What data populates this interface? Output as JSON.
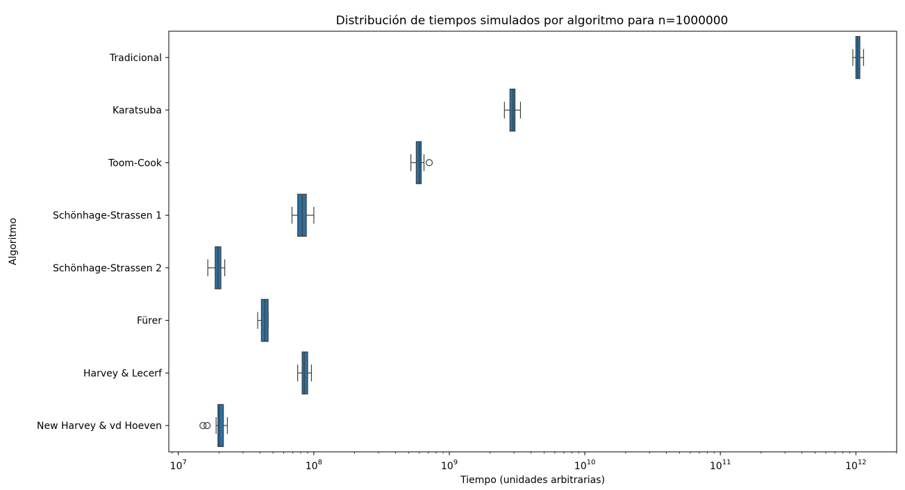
{
  "chart_data": {
    "type": "boxplot",
    "orientation": "horizontal",
    "title": "Distribución de tiempos simulados por algoritmo para n=1000000",
    "xlabel": "Tiempo (unidades arbitrarias)",
    "ylabel": "Algoritmo",
    "xscale": "log",
    "xlim": [
      8500000,
      2000000000000
    ],
    "xticks": [
      {
        "value": 10000000,
        "base": "10",
        "exp": "7"
      },
      {
        "value": 100000000,
        "base": "10",
        "exp": "8"
      },
      {
        "value": 1000000000,
        "base": "10",
        "exp": "9"
      },
      {
        "value": 10000000000,
        "base": "10",
        "exp": "10"
      },
      {
        "value": 100000000000,
        "base": "10",
        "exp": "11"
      },
      {
        "value": 1000000000000,
        "base": "10",
        "exp": "12"
      }
    ],
    "box_color": "#2e6f9e",
    "edge_color": "#3d3d3d",
    "grid": false,
    "legend": "none",
    "categories": [
      "Tradicional",
      "Karatsuba",
      "Toom-Cook",
      "Schönhage-Strassen 1",
      "Schönhage-Strassen 2",
      "Fürer",
      "Harvey & Lecerf",
      "New Harvey & vd Hoeven"
    ],
    "boxes": [
      {
        "category": "Tradicional",
        "whisker_low": 950000000000,
        "q1": 1000000000000,
        "median": 1030000000000,
        "q3": 1070000000000,
        "whisker_high": 1140000000000,
        "outliers": []
      },
      {
        "category": "Karatsuba",
        "whisker_low": 2550000000,
        "q1": 2800000000,
        "median": 2950000000,
        "q3": 3050000000,
        "whisker_high": 3350000000,
        "outliers": []
      },
      {
        "category": "Toom-Cook",
        "whisker_low": 520000000,
        "q1": 570000000,
        "median": 600000000,
        "q3": 620000000,
        "whisker_high": 650000000,
        "outliers": [
          710000000
        ]
      },
      {
        "category": "Schönhage-Strassen 1",
        "whisker_low": 69000000,
        "q1": 76000000,
        "median": 82000000,
        "q3": 88000000,
        "whisker_high": 100000000,
        "outliers": []
      },
      {
        "category": "Schönhage-Strassen 2",
        "whisker_low": 16500000,
        "q1": 18700000,
        "median": 19600000,
        "q3": 20600000,
        "whisker_high": 22000000,
        "outliers": []
      },
      {
        "category": "Fürer",
        "whisker_low": 38500000,
        "q1": 41000000,
        "median": 43500000,
        "q3": 46000000,
        "whisker_high": 46000000,
        "outliers": []
      },
      {
        "category": "Harvey & Lecerf",
        "whisker_low": 76000000,
        "q1": 82000000,
        "median": 85000000,
        "q3": 90000000,
        "whisker_high": 96000000,
        "outliers": []
      },
      {
        "category": "New Harvey & vd Hoeven",
        "whisker_low": 19000000,
        "q1": 19600000,
        "median": 20000000,
        "q3": 21500000,
        "whisker_high": 23000000,
        "outliers": [
          15200000,
          16300000
        ]
      }
    ]
  }
}
